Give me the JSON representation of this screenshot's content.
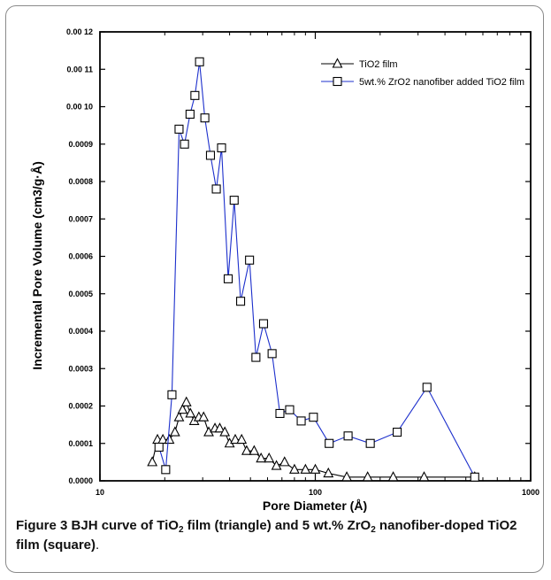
{
  "chart_data": {
    "type": "line",
    "x_scale": "log",
    "xlim": [
      10,
      1000
    ],
    "ylim": [
      0,
      0.0012
    ],
    "x_ticks": [
      10,
      100,
      1000
    ],
    "x_tick_labels": [
      "10",
      "100",
      "1000"
    ],
    "y_ticks": [
      0,
      0.0001,
      0.0002,
      0.0003,
      0.0004,
      0.0005,
      0.0006,
      0.0007,
      0.0008,
      0.0009,
      0.001,
      0.0011,
      0.0012
    ],
    "y_tick_labels": [
      "0.0000",
      "0.0001",
      "0.0002",
      "0.0003",
      "0.0004",
      "0.0005",
      "0.0006",
      "0.0007",
      "0.0008",
      "0.0009",
      "0.00 10",
      "0.00 11",
      "0.00 12"
    ],
    "xlabel": "Pore Diameter (Å)",
    "ylabel": "Incremental Pore Volume (cm3/g·Å)",
    "legend_position": "top-right",
    "grid": false,
    "series": [
      {
        "name": "TiO2 film",
        "marker": "triangle",
        "color": "#000000",
        "points": [
          [
            17.5,
            5e-05
          ],
          [
            18.5,
            0.00011
          ],
          [
            19.6,
            0.00011
          ],
          [
            21.0,
            0.00011
          ],
          [
            22.3,
            0.00013
          ],
          [
            23.3,
            0.00017
          ],
          [
            24.2,
            0.00019
          ],
          [
            25.2,
            0.00021
          ],
          [
            26.3,
            0.00018
          ],
          [
            27.4,
            0.00016
          ],
          [
            28.8,
            0.00017
          ],
          [
            30.3,
            0.00017
          ],
          [
            32.0,
            0.00013
          ],
          [
            34.2,
            0.00014
          ],
          [
            36.0,
            0.00014
          ],
          [
            38.0,
            0.00013
          ],
          [
            40.0,
            0.0001
          ],
          [
            42.5,
            0.00011
          ],
          [
            45.5,
            0.00011
          ],
          [
            48.0,
            8e-05
          ],
          [
            52.0,
            8e-05
          ],
          [
            56.0,
            6e-05
          ],
          [
            61.0,
            6e-05
          ],
          [
            66.0,
            4e-05
          ],
          [
            72.0,
            5e-05
          ],
          [
            80.0,
            3e-05
          ],
          [
            90.0,
            3e-05
          ],
          [
            100.0,
            3e-05
          ],
          [
            115.0,
            2e-05
          ],
          [
            140.0,
            1e-05
          ],
          [
            175.0,
            1e-05
          ],
          [
            230.0,
            1e-05
          ],
          [
            320.0,
            1e-05
          ],
          [
            550.0,
            1e-05
          ]
        ]
      },
      {
        "name": "5wt.% ZrO2 nanofiber added TiO2 film",
        "marker": "square",
        "color": "#1c2fcc",
        "points": [
          [
            18.8,
            9e-05
          ],
          [
            20.2,
            3e-05
          ],
          [
            21.6,
            0.00023
          ],
          [
            23.3,
            0.00094
          ],
          [
            24.7,
            0.0009
          ],
          [
            26.2,
            0.00098
          ],
          [
            27.6,
            0.00103
          ],
          [
            29.0,
            0.00112
          ],
          [
            30.7,
            0.00097
          ],
          [
            32.6,
            0.00087
          ],
          [
            34.7,
            0.00078
          ],
          [
            36.7,
            0.00089
          ],
          [
            39.4,
            0.00054
          ],
          [
            42.0,
            0.00075
          ],
          [
            45.0,
            0.00048
          ],
          [
            49.5,
            0.00059
          ],
          [
            53.0,
            0.00033
          ],
          [
            57.5,
            0.00042
          ],
          [
            63.0,
            0.00034
          ],
          [
            68.5,
            0.00018
          ],
          [
            76.0,
            0.00019
          ],
          [
            86.0,
            0.00016
          ],
          [
            98.0,
            0.00017
          ],
          [
            116.0,
            0.0001
          ],
          [
            142.0,
            0.00012
          ],
          [
            180.0,
            0.0001
          ],
          [
            240.0,
            0.00013
          ],
          [
            330.0,
            0.00025
          ],
          [
            550.0,
            1e-05
          ]
        ]
      }
    ]
  },
  "caption": {
    "label": "Figure 3",
    "bold_part_1": " BJH curve of TiO",
    "sub_1": "2",
    "bold_part_2": " film (triangle) and 5 wt.% ZrO",
    "sub_2": "2",
    "bold_part_3": " nanofiber-doped TiO2 film (square)",
    "end": "."
  }
}
